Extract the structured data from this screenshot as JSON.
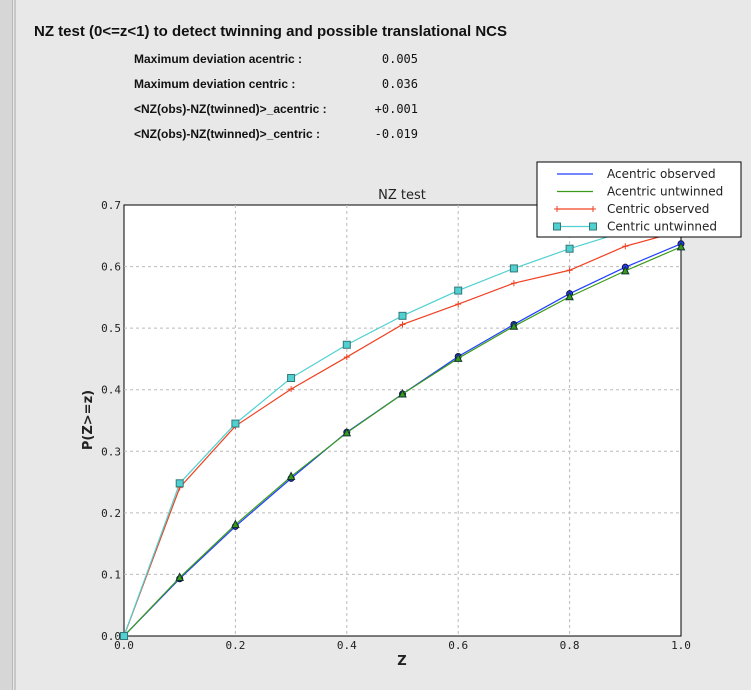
{
  "header": {
    "title": "NZ test (0<=z<1) to detect twinning and possible translational NCS"
  },
  "stats": [
    {
      "label": "Maximum deviation acentric :",
      "value": "0.005"
    },
    {
      "label": "Maximum deviation centric :",
      "value": "0.036"
    },
    {
      "label": "<NZ(obs)-NZ(twinned)>_acentric :",
      "value": "+0.001"
    },
    {
      "label": "<NZ(obs)-NZ(twinned)>_centric :",
      "value": "-0.019"
    }
  ],
  "chart_data": {
    "type": "line",
    "title": "NZ test",
    "xlabel": "Z",
    "ylabel": "P(Z>=z)",
    "xlim": [
      0,
      1
    ],
    "ylim": [
      0,
      0.7
    ],
    "xticks": [
      "0.0",
      "0.2",
      "0.4",
      "0.6",
      "0.8",
      "1.0"
    ],
    "yticks": [
      "0.0",
      "0.1",
      "0.2",
      "0.3",
      "0.4",
      "0.5",
      "0.6",
      "0.7"
    ],
    "grid": true,
    "legend_position": "top-right",
    "x": [
      0,
      0.1,
      0.2,
      0.3,
      0.4,
      0.5,
      0.6,
      0.7,
      0.8,
      0.9,
      1.0
    ],
    "series": [
      {
        "name": "Acentric observed",
        "color": "#1f3fff",
        "marker": "circle",
        "values": [
          0,
          0.093,
          0.178,
          0.256,
          0.331,
          0.393,
          0.454,
          0.506,
          0.556,
          0.599,
          0.637
        ]
      },
      {
        "name": "Acentric untwinned",
        "color": "#3a9a1a",
        "marker": "triangle",
        "values": [
          0,
          0.095,
          0.181,
          0.259,
          0.33,
          0.393,
          0.451,
          0.503,
          0.551,
          0.593,
          0.632
        ]
      },
      {
        "name": "Centric observed",
        "color": "#f04020",
        "marker": "plus",
        "values": [
          0,
          0.241,
          0.341,
          0.401,
          0.453,
          0.506,
          0.539,
          0.573,
          0.594,
          0.633,
          0.658
        ]
      },
      {
        "name": "Centric untwinned",
        "color": "#50d0d0",
        "marker": "square",
        "values": [
          0,
          0.248,
          0.345,
          0.419,
          0.473,
          0.52,
          0.561,
          0.597,
          0.629,
          0.657,
          0.683
        ]
      }
    ]
  }
}
